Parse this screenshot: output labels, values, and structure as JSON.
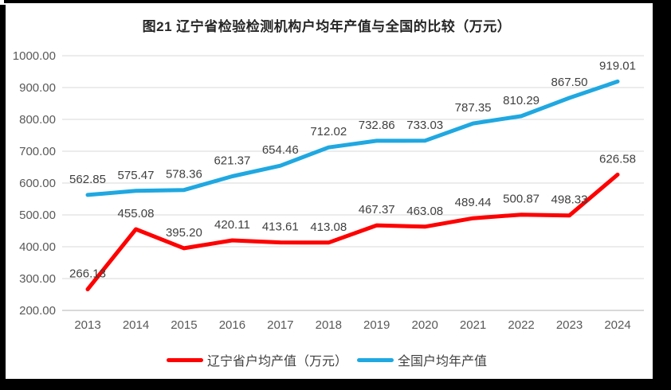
{
  "title": "图21 辽宁省检验检测机构户均年产值与全国的比较（万元）",
  "chart_data": {
    "type": "line",
    "title": "图21 辽宁省检验检测机构户均年产值与全国的比较（万元）",
    "categories": [
      "2013",
      "2014",
      "2015",
      "2016",
      "2017",
      "2018",
      "2019",
      "2020",
      "2021",
      "2022",
      "2023",
      "2024"
    ],
    "series": [
      {
        "name": "辽宁省户均产值（万元）",
        "color": "#FE0000",
        "values": [
          266.13,
          455.08,
          395.2,
          420.11,
          413.61,
          413.08,
          467.37,
          463.08,
          489.44,
          500.87,
          498.33,
          626.58
        ]
      },
      {
        "name": "全国户均年产值",
        "color": "#1FA8E1",
        "values": [
          562.85,
          575.47,
          578.36,
          621.37,
          654.46,
          712.02,
          732.86,
          733.03,
          787.35,
          810.29,
          867.5,
          919.01
        ]
      }
    ],
    "ylim": [
      200,
      1000
    ],
    "ytick_step": 100,
    "value_label_decimals": 2,
    "grid": true,
    "legend_position": "bottom",
    "axis_label_color": "#595959",
    "data_label_color": "#404040",
    "grid_color": "#D9D9D9",
    "frame_color": "#000000",
    "background_color": "#FFFFFF"
  }
}
